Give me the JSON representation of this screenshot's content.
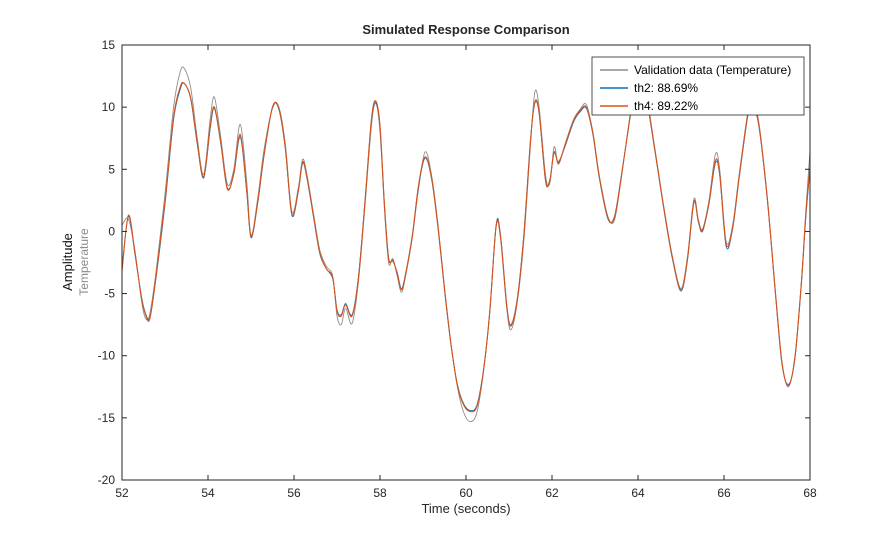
{
  "chart_data": {
    "type": "line",
    "title": "Simulated Response Comparison",
    "xlabel": "Time (seconds)",
    "ylabel": "Amplitude (Temperature)",
    "ylabel_lines": [
      "Amplitude",
      "Temperature"
    ],
    "xlim": [
      52,
      68
    ],
    "ylim": [
      -20,
      15
    ],
    "xticks": [
      52,
      54,
      56,
      58,
      60,
      62,
      64,
      66,
      68
    ],
    "yticks": [
      -20,
      -15,
      -10,
      -5,
      0,
      5,
      10,
      15
    ],
    "grid": false,
    "legend_position": "top-right",
    "x": [
      52.0,
      52.15,
      52.3,
      52.45,
      52.55,
      52.65,
      52.8,
      53.0,
      53.2,
      53.35,
      53.45,
      53.6,
      53.75,
      53.9,
      54.05,
      54.15,
      54.3,
      54.45,
      54.6,
      54.75,
      54.9,
      55.0,
      55.15,
      55.3,
      55.5,
      55.65,
      55.8,
      55.95,
      56.1,
      56.2,
      56.3,
      56.45,
      56.6,
      56.75,
      56.9,
      57.0,
      57.1,
      57.2,
      57.35,
      57.5,
      57.65,
      57.8,
      57.9,
      58.0,
      58.1,
      58.2,
      58.3,
      58.4,
      58.5,
      58.6,
      58.75,
      58.9,
      59.05,
      59.2,
      59.35,
      59.5,
      59.65,
      59.8,
      59.95,
      60.1,
      60.25,
      60.4,
      60.55,
      60.7,
      60.8,
      60.95,
      61.05,
      61.2,
      61.35,
      61.5,
      61.6,
      61.7,
      61.85,
      61.95,
      62.05,
      62.15,
      62.3,
      62.5,
      62.65,
      62.8,
      62.95,
      63.1,
      63.3,
      63.45,
      63.6,
      63.8,
      63.95,
      64.05,
      64.2,
      64.4,
      64.6,
      64.8,
      65.0,
      65.15,
      65.3,
      65.4,
      65.5,
      65.65,
      65.8,
      65.9,
      66.05,
      66.2,
      66.35,
      66.55,
      66.65,
      66.8,
      67.0,
      67.2,
      67.35,
      67.5,
      67.65,
      67.8,
      67.9,
      68.0
    ],
    "series": [
      {
        "id": "validation",
        "name": "Validation data (Temperature)",
        "color": "#8c8c8c",
        "width": 0.9,
        "values": [
          0.5,
          1.0,
          -1.5,
          -5.5,
          -7.0,
          -6.6,
          -3.0,
          3.0,
          10.0,
          12.8,
          13.1,
          11.5,
          7.5,
          4.6,
          9.0,
          10.8,
          7.5,
          3.8,
          5.0,
          8.6,
          4.0,
          -0.3,
          2.5,
          6.5,
          9.9,
          10.0,
          7.0,
          1.6,
          3.5,
          5.8,
          4.6,
          1.5,
          -1.5,
          -2.8,
          -3.6,
          -6.8,
          -7.5,
          -6.2,
          -7.4,
          -4.0,
          2.0,
          8.5,
          10.3,
          8.0,
          2.0,
          -2.5,
          -2.2,
          -3.6,
          -4.9,
          -3.5,
          -0.5,
          3.5,
          6.4,
          4.5,
          0.5,
          -4.5,
          -9.0,
          -12.5,
          -14.6,
          -15.3,
          -14.6,
          -11.5,
          -6.5,
          0.4,
          -0.5,
          -6.3,
          -7.9,
          -5.5,
          -0.5,
          7.0,
          11.2,
          10.0,
          4.5,
          3.9,
          6.8,
          5.4,
          7.0,
          9.0,
          9.8,
          10.2,
          8.0,
          4.5,
          1.2,
          0.9,
          4.0,
          9.0,
          12.5,
          13.0,
          11.0,
          6.5,
          2.0,
          -2.0,
          -4.6,
          -2.0,
          2.6,
          1.0,
          0.2,
          2.5,
          6.2,
          5.0,
          -0.8,
          0.5,
          4.5,
          9.5,
          10.3,
          9.0,
          3.0,
          -5.0,
          -10.5,
          -12.5,
          -10.0,
          -4.0,
          1.5,
          6.5
        ]
      },
      {
        "id": "th2",
        "name": "th2: 88.69%",
        "color": "#0072bd",
        "width": 0.9,
        "values": [
          -3.0,
          1.2,
          -1.8,
          -5.2,
          -6.6,
          -6.9,
          -3.5,
          2.2,
          9.0,
          11.4,
          11.9,
          10.6,
          7.0,
          4.3,
          8.2,
          9.9,
          7.0,
          3.5,
          4.6,
          7.6,
          3.2,
          -0.5,
          2.1,
          6.0,
          10.0,
          9.8,
          6.6,
          1.3,
          3.2,
          5.5,
          4.3,
          1.2,
          -1.8,
          -3.0,
          -3.8,
          -6.3,
          -6.7,
          -5.8,
          -6.7,
          -3.6,
          2.4,
          8.9,
          10.4,
          8.4,
          2.4,
          -2.1,
          -2.4,
          -3.3,
          -4.6,
          -3.3,
          -0.3,
          3.7,
          5.9,
          4.2,
          0.2,
          -4.7,
          -9.1,
          -12.3,
          -13.9,
          -14.4,
          -14.0,
          -11.3,
          -6.7,
          0.5,
          -0.2,
          -6.0,
          -7.5,
          -5.2,
          0.0,
          7.4,
          10.3,
          9.5,
          4.0,
          4.2,
          6.3,
          5.6,
          6.8,
          8.8,
          9.6,
          9.9,
          7.8,
          4.3,
          1.0,
          1.2,
          4.2,
          8.8,
          11.9,
          12.2,
          10.6,
          6.3,
          1.8,
          -2.2,
          -4.8,
          -2.3,
          2.3,
          0.8,
          0.0,
          2.2,
          5.5,
          4.5,
          -1.2,
          0.2,
          4.2,
          9.2,
          9.9,
          8.7,
          2.8,
          -5.2,
          -10.7,
          -12.3,
          -10.2,
          -4.2,
          1.0,
          5.0
        ]
      },
      {
        "id": "th4",
        "name": "th4: 89.22%",
        "color": "#d95319",
        "width": 1.1,
        "values": [
          -3.2,
          1.3,
          -1.7,
          -5.3,
          -6.7,
          -7.0,
          -3.4,
          2.4,
          9.2,
          11.6,
          11.9,
          10.7,
          7.1,
          4.4,
          8.4,
          10.0,
          7.1,
          3.4,
          4.7,
          7.8,
          3.3,
          -0.4,
          2.2,
          6.1,
          10.0,
          9.9,
          6.7,
          1.4,
          3.3,
          5.6,
          4.4,
          1.3,
          -1.7,
          -3.0,
          -3.7,
          -6.4,
          -6.8,
          -5.9,
          -6.8,
          -3.7,
          2.3,
          9.0,
          10.5,
          8.5,
          2.3,
          -2.2,
          -2.3,
          -3.4,
          -4.7,
          -3.4,
          -0.4,
          3.8,
          6.0,
          4.3,
          0.3,
          -4.6,
          -9.0,
          -12.4,
          -14.0,
          -14.5,
          -14.1,
          -11.4,
          -6.6,
          0.4,
          -0.3,
          -6.1,
          -7.6,
          -5.3,
          -0.1,
          7.3,
          10.4,
          9.6,
          4.1,
          4.1,
          6.4,
          5.5,
          6.9,
          8.9,
          9.7,
          10.0,
          7.9,
          4.4,
          1.1,
          1.1,
          4.1,
          8.9,
          12.0,
          12.3,
          10.7,
          6.4,
          1.9,
          -2.1,
          -4.7,
          -2.2,
          2.4,
          0.9,
          0.1,
          2.3,
          5.7,
          4.6,
          -1.0,
          0.3,
          4.3,
          9.3,
          10.0,
          8.8,
          2.9,
          -5.1,
          -10.6,
          -12.4,
          -10.1,
          -4.1,
          1.2,
          5.2
        ]
      }
    ],
    "axes_color": "#262626",
    "legend_border_color": "#262626",
    "background_color": "#ffffff"
  }
}
